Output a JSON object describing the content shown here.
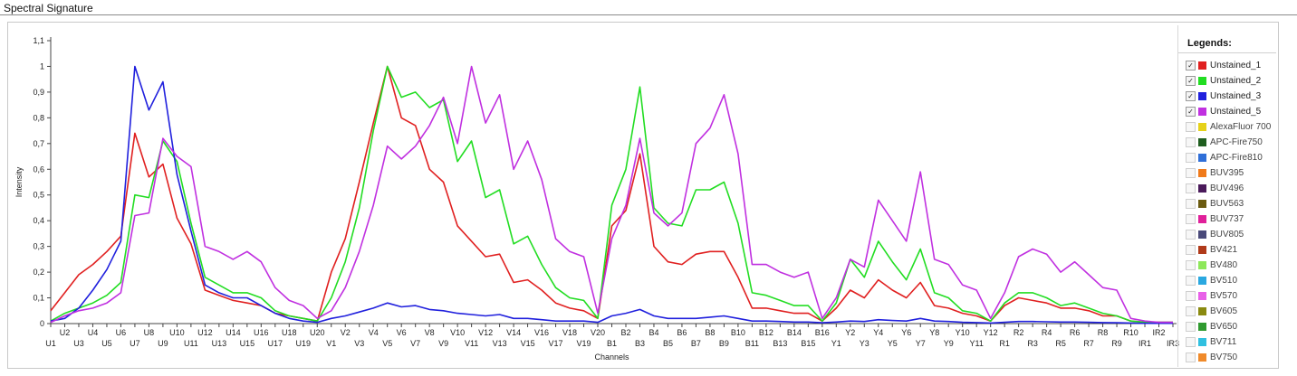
{
  "window": {
    "title": "Spectral Signature"
  },
  "legend": {
    "title": "Legends:",
    "items": [
      {
        "label": "Unstained_1",
        "color": "#e02020",
        "checked": true
      },
      {
        "label": "Unstained_2",
        "color": "#22dd22",
        "checked": true
      },
      {
        "label": "Unstained_3",
        "color": "#2020dd",
        "checked": true
      },
      {
        "label": "Unstained_5",
        "color": "#c030e0",
        "checked": true
      },
      {
        "label": "AlexaFluor 700",
        "color": "#e6d21a",
        "checked": false
      },
      {
        "label": "APC-Fire750",
        "color": "#1f5e1f",
        "checked": false
      },
      {
        "label": "APC-Fire810",
        "color": "#2f6fd8",
        "checked": false
      },
      {
        "label": "BUV395",
        "color": "#f07a1a",
        "checked": false
      },
      {
        "label": "BUV496",
        "color": "#4a1a5a",
        "checked": false
      },
      {
        "label": "BUV563",
        "color": "#6a5a10",
        "checked": false
      },
      {
        "label": "BUV737",
        "color": "#e0209a",
        "checked": false
      },
      {
        "label": "BUV805",
        "color": "#4a4a7a",
        "checked": false
      },
      {
        "label": "BV421",
        "color": "#b03a1a",
        "checked": false
      },
      {
        "label": "BV480",
        "color": "#8ee85a",
        "checked": false
      },
      {
        "label": "BV510",
        "color": "#2aa8e0",
        "checked": false
      },
      {
        "label": "BV570",
        "color": "#e860e8",
        "checked": false
      },
      {
        "label": "BV605",
        "color": "#8a8a10",
        "checked": false
      },
      {
        "label": "BV650",
        "color": "#2f9a2f",
        "checked": false
      },
      {
        "label": "BV711",
        "color": "#30c0e0",
        "checked": false
      },
      {
        "label": "BV750",
        "color": "#f08a2a",
        "checked": false
      }
    ]
  },
  "chart_data": {
    "type": "line",
    "title": "",
    "xlabel": "Channels",
    "ylabel": "Intensity",
    "ylim": [
      0,
      1.1
    ],
    "yticks": [
      "0",
      "0,1",
      "0,2",
      "0,3",
      "0,4",
      "0,5",
      "0,6",
      "0,7",
      "0,8",
      "0,9",
      "1",
      "1,1"
    ],
    "grid": false,
    "legend_position": "right",
    "x": [
      "U1",
      "U2",
      "U3",
      "U4",
      "U5",
      "U6",
      "U7",
      "U8",
      "U9",
      "U10",
      "U11",
      "U12",
      "U13",
      "U14",
      "U15",
      "U16",
      "U17",
      "U18",
      "U19",
      "U20",
      "V1",
      "V2",
      "V3",
      "V4",
      "V5",
      "V6",
      "V7",
      "V8",
      "V9",
      "V10",
      "V11",
      "V12",
      "V13",
      "V14",
      "V15",
      "V16",
      "V17",
      "V18",
      "V19",
      "V20",
      "B1",
      "B2",
      "B3",
      "B4",
      "B5",
      "B6",
      "B7",
      "B8",
      "B9",
      "B10",
      "B11",
      "B12",
      "B13",
      "B14",
      "B15",
      "B16",
      "Y1",
      "Y2",
      "Y3",
      "Y4",
      "Y5",
      "Y6",
      "Y7",
      "Y8",
      "Y9",
      "Y10",
      "Y11",
      "Y12",
      "R1",
      "R2",
      "R3",
      "R4",
      "R5",
      "R6",
      "R7",
      "R8",
      "R9",
      "R10",
      "IR1",
      "IR2",
      "IR3"
    ],
    "series": [
      {
        "name": "Unstained_1",
        "color": "#e02020",
        "values": [
          0.05,
          0.12,
          0.19,
          0.23,
          0.28,
          0.34,
          0.74,
          0.57,
          0.62,
          0.41,
          0.31,
          0.13,
          0.11,
          0.09,
          0.08,
          0.07,
          0.04,
          0.03,
          0.02,
          0.01,
          0.2,
          0.33,
          0.55,
          0.78,
          1.0,
          0.8,
          0.77,
          0.6,
          0.55,
          0.38,
          0.32,
          0.26,
          0.27,
          0.16,
          0.17,
          0.13,
          0.08,
          0.06,
          0.05,
          0.02,
          0.38,
          0.44,
          0.66,
          0.3,
          0.24,
          0.23,
          0.27,
          0.28,
          0.28,
          0.18,
          0.06,
          0.06,
          0.05,
          0.04,
          0.04,
          0.01,
          0.06,
          0.13,
          0.1,
          0.17,
          0.13,
          0.1,
          0.16,
          0.07,
          0.06,
          0.04,
          0.03,
          0.01,
          0.07,
          0.1,
          0.09,
          0.08,
          0.06,
          0.06,
          0.05,
          0.03,
          0.03,
          0.01,
          0.005,
          0.005,
          0.005
        ]
      },
      {
        "name": "Unstained_2",
        "color": "#22dd22",
        "values": [
          0.01,
          0.04,
          0.06,
          0.08,
          0.11,
          0.16,
          0.5,
          0.49,
          0.71,
          0.63,
          0.39,
          0.18,
          0.15,
          0.12,
          0.12,
          0.1,
          0.05,
          0.03,
          0.02,
          0.01,
          0.1,
          0.24,
          0.45,
          0.75,
          1.0,
          0.88,
          0.9,
          0.84,
          0.87,
          0.63,
          0.71,
          0.49,
          0.52,
          0.31,
          0.34,
          0.23,
          0.14,
          0.1,
          0.09,
          0.02,
          0.46,
          0.6,
          0.92,
          0.45,
          0.39,
          0.38,
          0.52,
          0.52,
          0.55,
          0.39,
          0.12,
          0.11,
          0.09,
          0.07,
          0.07,
          0.01,
          0.08,
          0.25,
          0.18,
          0.32,
          0.24,
          0.17,
          0.29,
          0.12,
          0.1,
          0.05,
          0.04,
          0.01,
          0.08,
          0.12,
          0.12,
          0.1,
          0.07,
          0.08,
          0.06,
          0.04,
          0.03,
          0.01,
          0.005,
          0.005,
          0.005
        ]
      },
      {
        "name": "Unstained_3",
        "color": "#2020dd",
        "values": [
          0.01,
          0.02,
          0.06,
          0.13,
          0.21,
          0.32,
          1.0,
          0.83,
          0.94,
          0.58,
          0.36,
          0.15,
          0.12,
          0.1,
          0.1,
          0.07,
          0.04,
          0.02,
          0.01,
          0.005,
          0.02,
          0.03,
          0.045,
          0.06,
          0.08,
          0.065,
          0.07,
          0.055,
          0.05,
          0.04,
          0.035,
          0.03,
          0.035,
          0.02,
          0.02,
          0.015,
          0.01,
          0.01,
          0.01,
          0.005,
          0.03,
          0.04,
          0.055,
          0.03,
          0.02,
          0.02,
          0.02,
          0.025,
          0.03,
          0.02,
          0.01,
          0.01,
          0.008,
          0.006,
          0.006,
          0.003,
          0.006,
          0.01,
          0.008,
          0.015,
          0.012,
          0.01,
          0.02,
          0.01,
          0.008,
          0.005,
          0.004,
          0.002,
          0.005,
          0.008,
          0.008,
          0.007,
          0.006,
          0.006,
          0.005,
          0.004,
          0.003,
          0.002,
          0.001,
          0.001,
          0.001
        ]
      },
      {
        "name": "Unstained_5",
        "color": "#c030e0",
        "values": [
          0.005,
          0.03,
          0.05,
          0.06,
          0.08,
          0.12,
          0.42,
          0.43,
          0.72,
          0.65,
          0.61,
          0.3,
          0.28,
          0.25,
          0.28,
          0.24,
          0.14,
          0.09,
          0.07,
          0.02,
          0.05,
          0.14,
          0.28,
          0.46,
          0.69,
          0.64,
          0.69,
          0.77,
          0.88,
          0.7,
          1.0,
          0.78,
          0.89,
          0.6,
          0.71,
          0.56,
          0.33,
          0.28,
          0.26,
          0.04,
          0.33,
          0.46,
          0.72,
          0.43,
          0.38,
          0.43,
          0.7,
          0.76,
          0.89,
          0.66,
          0.23,
          0.23,
          0.2,
          0.18,
          0.2,
          0.02,
          0.1,
          0.25,
          0.22,
          0.48,
          0.4,
          0.32,
          0.59,
          0.25,
          0.23,
          0.15,
          0.13,
          0.02,
          0.12,
          0.26,
          0.29,
          0.27,
          0.2,
          0.24,
          0.19,
          0.14,
          0.13,
          0.02,
          0.01,
          0.005,
          0.005
        ]
      }
    ]
  }
}
